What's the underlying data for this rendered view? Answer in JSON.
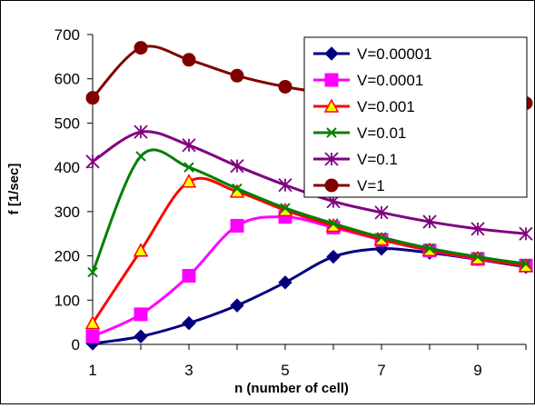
{
  "chart_data": {
    "type": "line",
    "title": "",
    "xlabel": "n (number of cell)",
    "ylabel": "f [1/sec]",
    "xlim": [
      1,
      10
    ],
    "ylim": [
      0,
      700
    ],
    "x_ticks": [
      1,
      3,
      5,
      7,
      9
    ],
    "y_ticks": [
      0,
      100,
      200,
      300,
      400,
      500,
      600,
      700
    ],
    "x_tick_labels": [
      "1",
      "3",
      "5",
      "7",
      "9"
    ],
    "y_tick_labels": [
      "0",
      "100",
      "200",
      "300",
      "400",
      "500",
      "600",
      "700"
    ],
    "grid": false,
    "legend_position": "top-right",
    "x": [
      1,
      2,
      3,
      4,
      5,
      6,
      7,
      8,
      9,
      10
    ],
    "series": [
      {
        "name": "V=0.00001",
        "color": "#00007f",
        "marker": "diamond",
        "values": [
          2,
          18,
          48,
          88,
          140,
          198,
          216,
          207,
          192,
          175
        ]
      },
      {
        "name": "V=0.0001",
        "color": "#ff00ff",
        "marker": "square",
        "values": [
          18,
          68,
          155,
          268,
          288,
          264,
          236,
          212,
          193,
          178
        ]
      },
      {
        "name": "V=0.001",
        "color": "#ff0000",
        "marker": "triangle",
        "values": [
          48,
          212,
          368,
          345,
          303,
          268,
          237,
          213,
          194,
          177
        ]
      },
      {
        "name": "V=0.01",
        "color": "#008000",
        "marker": "x",
        "values": [
          163,
          425,
          400,
          352,
          308,
          273,
          242,
          217,
          198,
          182
        ]
      },
      {
        "name": "V=0.1",
        "color": "#800080",
        "marker": "star",
        "values": [
          413,
          480,
          450,
          403,
          360,
          323,
          298,
          277,
          261,
          250
        ]
      },
      {
        "name": "V=1",
        "color": "#800000",
        "marker": "circle",
        "values": [
          557,
          670,
          643,
          607,
          582,
          566,
          556,
          551,
          548,
          545
        ]
      }
    ]
  }
}
